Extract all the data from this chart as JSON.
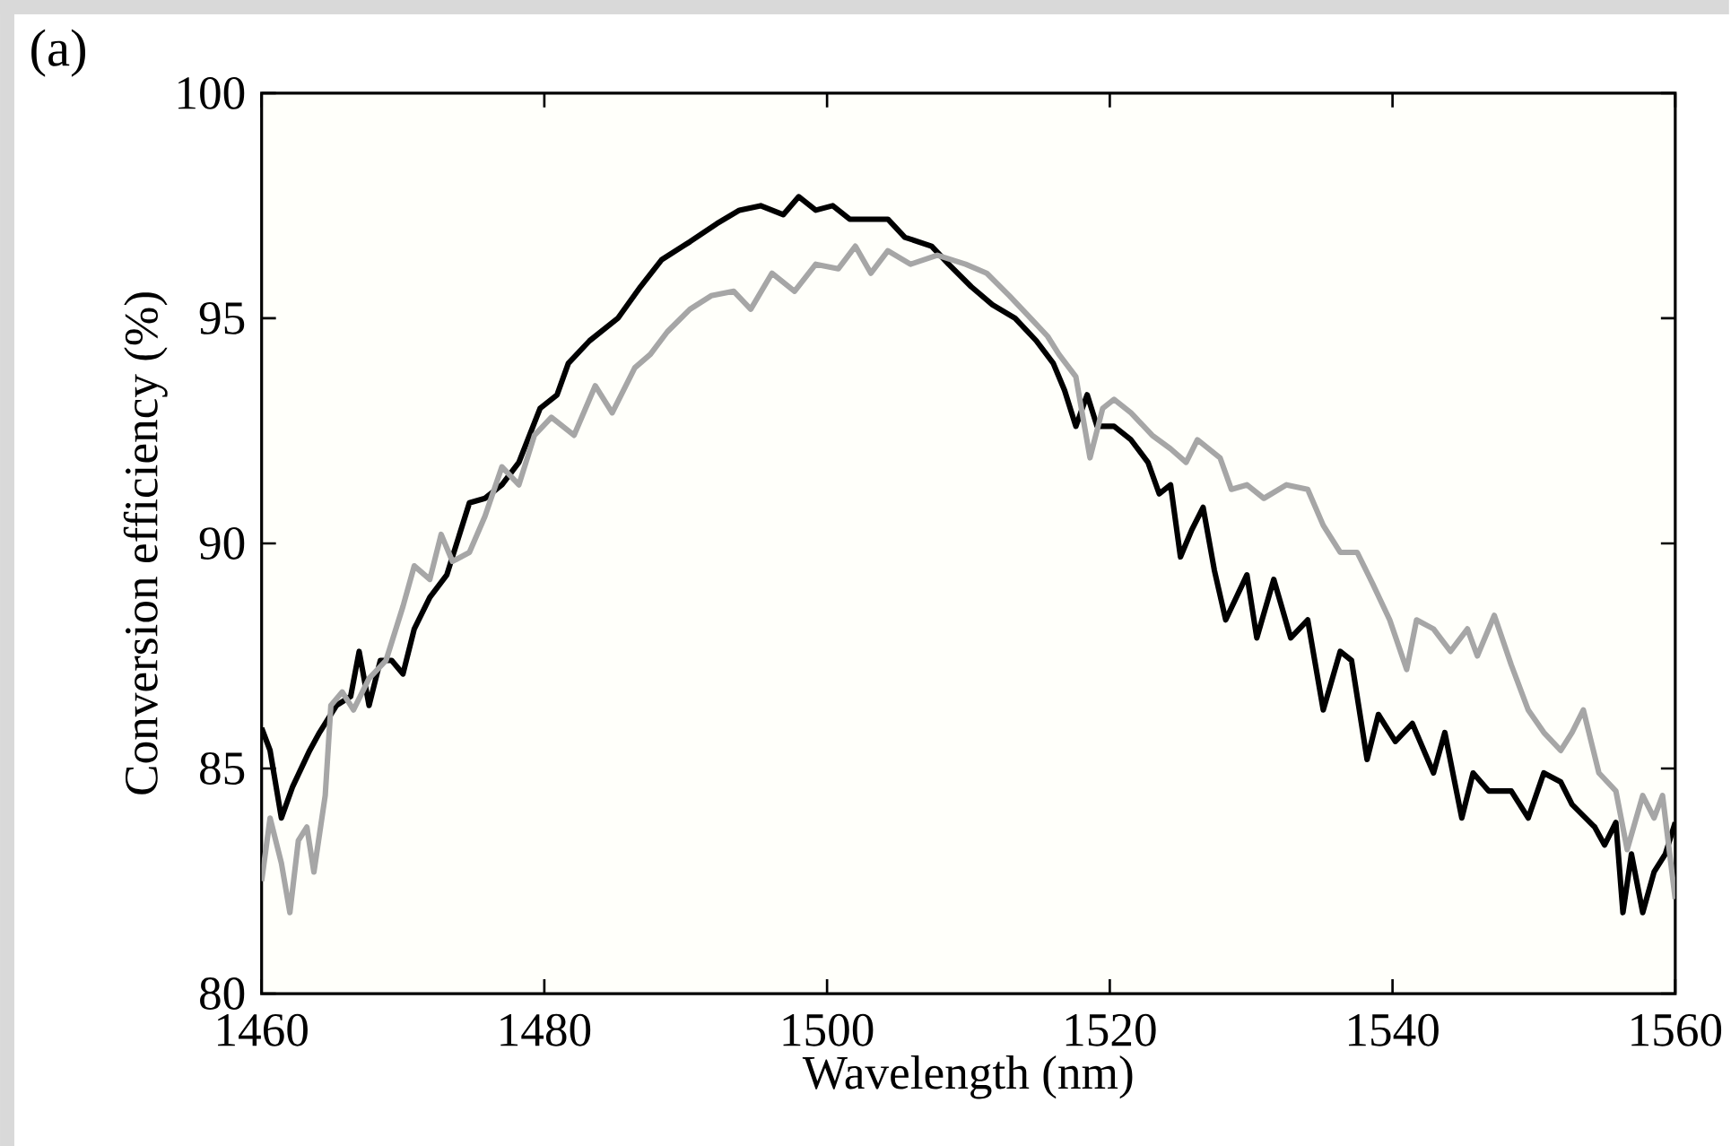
{
  "chart_data": {
    "type": "line",
    "xlabel": "Wavelength (nm)",
    "ylabel": "Conversion efficiency (%)",
    "annotations": [
      "(a)"
    ],
    "xlim": [
      1460,
      1560
    ],
    "ylim": [
      80,
      100
    ],
    "xticks": [
      1460,
      1480,
      1500,
      1520,
      1540,
      1560
    ],
    "yticks": [
      80,
      85,
      90,
      95,
      100
    ],
    "grid": false,
    "marker": "none",
    "line_style": "solid",
    "series": [
      {
        "color": "#000000",
        "x": [
          1460,
          1460.6,
          1461.4,
          1462.2,
          1463.4,
          1464.1,
          1465.3,
          1466.3,
          1466.9,
          1467.6,
          1468.4,
          1469.2,
          1470,
          1470.8,
          1471.9,
          1473.1,
          1473.9,
          1474.7,
          1475.8,
          1477,
          1478.2,
          1479.7,
          1480.9,
          1481.7,
          1483.2,
          1485.2,
          1486.8,
          1488.3,
          1490.3,
          1492.2,
          1493.8,
          1495.3,
          1496.9,
          1498,
          1499.2,
          1500.4,
          1501.6,
          1503.1,
          1504.3,
          1505.5,
          1507.4,
          1508.6,
          1510.2,
          1511.7,
          1513.3,
          1514.8,
          1516,
          1516.8,
          1517.6,
          1518.4,
          1519.1,
          1520.3,
          1521.5,
          1522.7,
          1523.5,
          1524.3,
          1525,
          1525.8,
          1526.6,
          1527.4,
          1528.2,
          1529.7,
          1530.4,
          1531.6,
          1532.8,
          1534,
          1535.1,
          1536.3,
          1537.1,
          1538.2,
          1539,
          1540.2,
          1541.4,
          1542.9,
          1543.7,
          1544.9,
          1545.7,
          1546.8,
          1548.4,
          1549.6,
          1550.7,
          1551.9,
          1552.7,
          1554.3,
          1555,
          1555.8,
          1556.3,
          1556.9,
          1557.7,
          1558.5,
          1559.3,
          1560
        ],
        "values": [
          85.9,
          85.4,
          83.9,
          84.6,
          85.4,
          85.8,
          86.4,
          86.6,
          87.6,
          86.4,
          87.4,
          87.4,
          87.1,
          88.1,
          88.8,
          89.3,
          90.1,
          90.9,
          91.0,
          91.3,
          91.8,
          93.0,
          93.3,
          94.0,
          94.5,
          95.0,
          95.7,
          96.3,
          96.7,
          97.1,
          97.4,
          97.5,
          97.3,
          97.7,
          97.4,
          97.5,
          97.2,
          97.2,
          97.2,
          96.8,
          96.6,
          96.2,
          95.7,
          95.3,
          95.0,
          94.5,
          94.0,
          93.4,
          92.6,
          93.3,
          92.6,
          92.6,
          92.3,
          91.8,
          91.1,
          91.3,
          89.7,
          90.3,
          90.8,
          89.4,
          88.3,
          89.3,
          87.9,
          89.2,
          87.9,
          88.3,
          86.3,
          87.6,
          87.4,
          85.2,
          86.2,
          85.6,
          86.0,
          84.9,
          85.8,
          83.9,
          84.9,
          84.5,
          84.5,
          83.9,
          84.9,
          84.7,
          84.2,
          83.7,
          83.3,
          83.8,
          81.8,
          83.1,
          81.8,
          82.7,
          83.1,
          83.8
        ]
      },
      {
        "color": "#a6a6a6",
        "x": [
          1460,
          1460.6,
          1461.4,
          1462,
          1462.6,
          1463.2,
          1463.7,
          1464.5,
          1464.9,
          1465.7,
          1466.5,
          1467.6,
          1468.8,
          1470,
          1470.8,
          1471.9,
          1472.7,
          1473.5,
          1474.7,
          1475.8,
          1477,
          1478.2,
          1479.3,
          1480.5,
          1482.1,
          1483.6,
          1484.8,
          1486.4,
          1487.5,
          1488.7,
          1490.3,
          1491.8,
          1493.4,
          1494.6,
          1496.1,
          1497.7,
          1499.2,
          1500.8,
          1502,
          1503.1,
          1504.3,
          1505.9,
          1507.8,
          1509.8,
          1511.3,
          1512.9,
          1514.4,
          1515.6,
          1516.4,
          1517.6,
          1518.6,
          1519.5,
          1520.3,
          1521.5,
          1523,
          1524.3,
          1525.4,
          1526.2,
          1527.8,
          1528.6,
          1529.7,
          1530.9,
          1532.5,
          1534,
          1535.1,
          1536.3,
          1537.5,
          1538.6,
          1539.8,
          1541,
          1541.7,
          1542.9,
          1544.1,
          1545.3,
          1546,
          1547.2,
          1548.4,
          1549.6,
          1550.7,
          1551.9,
          1552.7,
          1553.5,
          1554.6,
          1555.8,
          1556.6,
          1557.7,
          1558.5,
          1559.1,
          1560
        ],
        "values": [
          82.5,
          83.9,
          82.9,
          81.8,
          83.4,
          83.7,
          82.7,
          84.4,
          86.4,
          86.7,
          86.3,
          87.0,
          87.4,
          88.6,
          89.5,
          89.2,
          90.2,
          89.6,
          89.8,
          90.6,
          91.7,
          91.3,
          92.4,
          92.8,
          92.4,
          93.5,
          92.9,
          93.9,
          94.2,
          94.7,
          95.2,
          95.5,
          95.6,
          95.2,
          96.0,
          95.6,
          96.2,
          96.1,
          96.6,
          96.0,
          96.5,
          96.2,
          96.4,
          96.2,
          96.0,
          95.5,
          95.0,
          94.6,
          94.2,
          93.7,
          91.9,
          93.0,
          93.2,
          92.9,
          92.4,
          92.1,
          91.8,
          92.3,
          91.9,
          91.2,
          91.3,
          91.0,
          91.3,
          91.2,
          90.4,
          89.8,
          89.8,
          89.1,
          88.3,
          87.2,
          88.3,
          88.1,
          87.6,
          88.1,
          87.5,
          88.4,
          87.3,
          86.3,
          85.8,
          85.4,
          85.8,
          86.3,
          84.9,
          84.5,
          83.2,
          84.4,
          83.9,
          84.4,
          82.1
        ]
      }
    ]
  }
}
